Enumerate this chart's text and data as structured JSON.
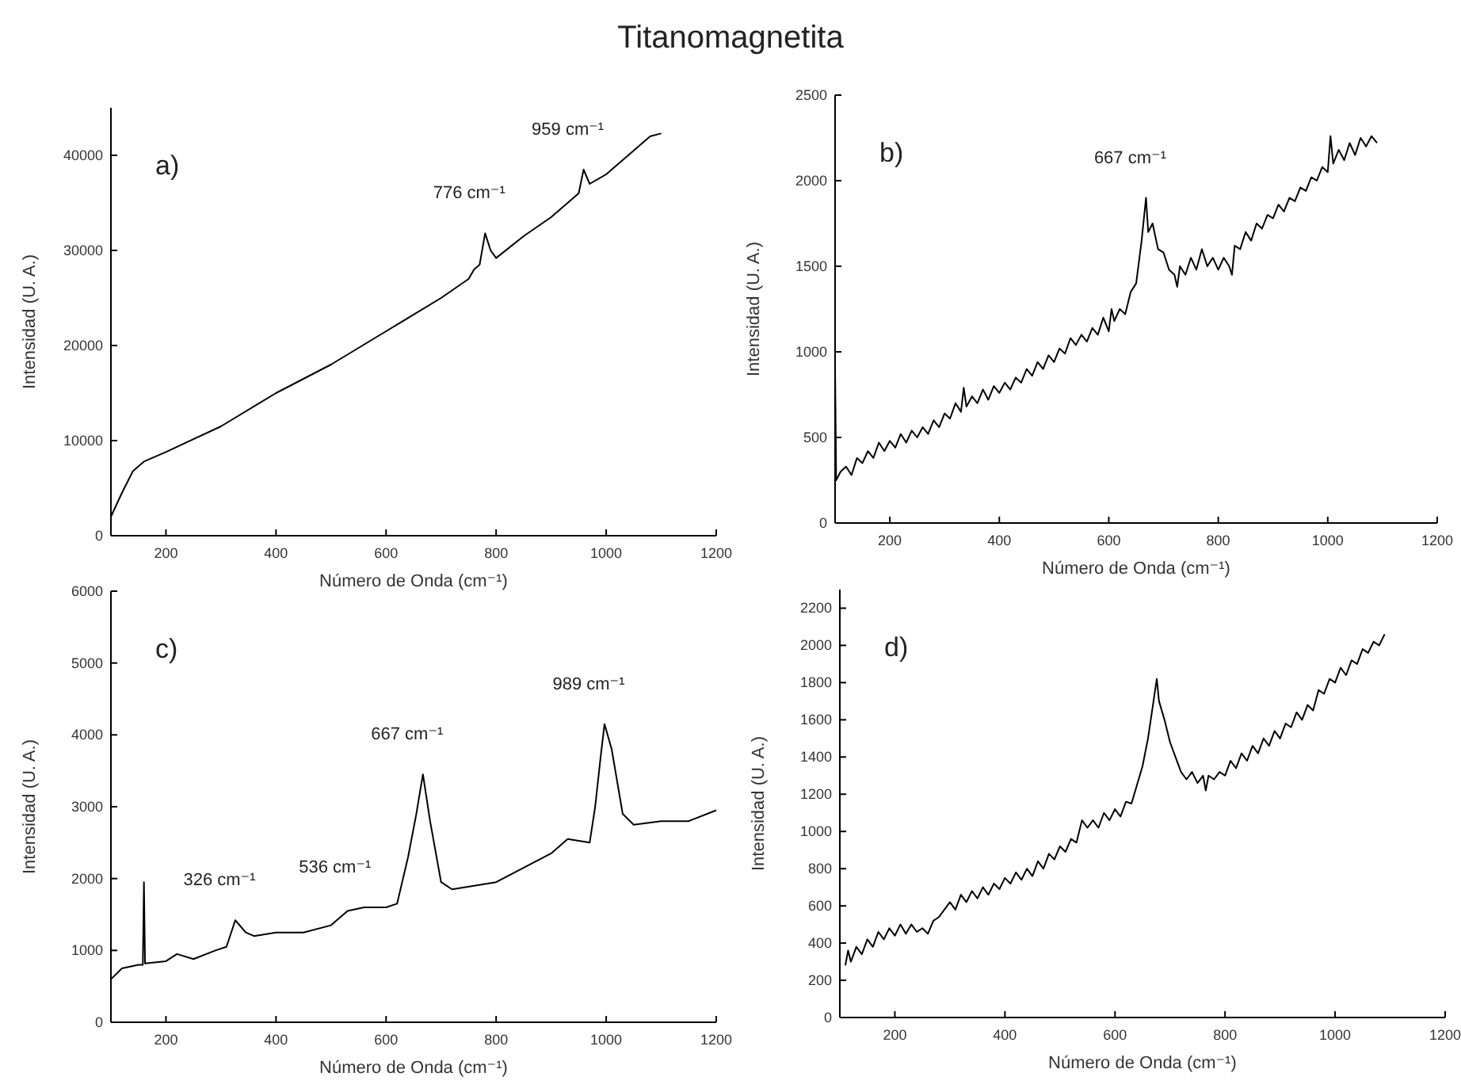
{
  "chart_data": [
    {
      "type": "line",
      "title": "Titanomagnetita",
      "xlabel": "Número de Onda (cm⁻¹)",
      "ylabel": "Intensidad (U. A.)",
      "xlim": [
        100,
        1200
      ],
      "ylim": [
        0,
        45000
      ],
      "xticks": [
        200,
        400,
        600,
        800,
        1000,
        1200
      ],
      "yticks": [
        0,
        10000,
        20000,
        30000,
        40000
      ],
      "color": "#000000",
      "x": [
        100,
        120,
        140,
        160,
        200,
        300,
        400,
        500,
        600,
        700,
        750,
        760,
        770,
        780,
        790,
        800,
        850,
        900,
        940,
        950,
        959,
        970,
        1000,
        1050,
        1080,
        1100
      ],
      "values": [
        2000,
        4500,
        6800,
        7800,
        8800,
        11500,
        15000,
        18000,
        21500,
        25000,
        27000,
        28000,
        28500,
        31800,
        30000,
        29200,
        31500,
        33500,
        35500,
        36000,
        38500,
        37000,
        38000,
        40500,
        42000,
        42300
      ],
      "annotations": [
        "a)",
        {
          "text": "776 cm⁻¹",
          "x": 780,
          "y": 31800
        },
        {
          "text": "959 cm⁻¹",
          "x": 959,
          "y": 38500
        }
      ]
    },
    {
      "type": "line",
      "xlabel": "Número de Onda (cm⁻¹)",
      "ylabel": "Intensidad (U. A.)",
      "xlim": [
        100,
        1200
      ],
      "ylim": [
        0,
        2500
      ],
      "xticks": [
        200,
        400,
        600,
        800,
        1000,
        1200
      ],
      "yticks": [
        0,
        500,
        1000,
        1500,
        2000,
        2500
      ],
      "color": "#000000",
      "x": [
        100,
        102,
        110,
        120,
        130,
        140,
        150,
        160,
        170,
        180,
        190,
        200,
        210,
        220,
        230,
        240,
        250,
        260,
        270,
        280,
        290,
        300,
        310,
        320,
        330,
        335,
        340,
        350,
        360,
        370,
        380,
        390,
        400,
        410,
        420,
        430,
        440,
        450,
        460,
        470,
        480,
        490,
        500,
        510,
        520,
        530,
        540,
        550,
        560,
        570,
        580,
        590,
        600,
        605,
        610,
        620,
        630,
        640,
        650,
        660,
        668,
        672,
        680,
        690,
        700,
        710,
        720,
        725,
        730,
        740,
        750,
        760,
        770,
        780,
        790,
        800,
        810,
        820,
        825,
        830,
        840,
        850,
        860,
        870,
        880,
        890,
        900,
        910,
        920,
        930,
        940,
        950,
        960,
        970,
        980,
        990,
        1000,
        1005,
        1010,
        1020,
        1030,
        1040,
        1050,
        1060,
        1070,
        1080,
        1090
      ],
      "values": [
        900,
        250,
        300,
        330,
        280,
        380,
        350,
        420,
        380,
        470,
        420,
        480,
        440,
        520,
        470,
        540,
        500,
        560,
        520,
        600,
        560,
        640,
        610,
        700,
        650,
        790,
        680,
        740,
        700,
        780,
        720,
        800,
        760,
        820,
        780,
        850,
        820,
        900,
        860,
        940,
        900,
        980,
        940,
        1020,
        990,
        1080,
        1040,
        1100,
        1060,
        1140,
        1100,
        1200,
        1120,
        1250,
        1180,
        1250,
        1220,
        1350,
        1400,
        1650,
        1900,
        1700,
        1750,
        1600,
        1580,
        1480,
        1450,
        1380,
        1500,
        1450,
        1550,
        1480,
        1600,
        1500,
        1550,
        1480,
        1550,
        1500,
        1450,
        1620,
        1600,
        1700,
        1650,
        1750,
        1720,
        1800,
        1780,
        1860,
        1820,
        1900,
        1880,
        1960,
        1940,
        2020,
        2000,
        2080,
        2050,
        2260,
        2100,
        2180,
        2120,
        2220,
        2150,
        2250,
        2200,
        2260,
        2220
      ],
      "annotations": [
        "b)",
        {
          "text": "667 cm⁻¹",
          "x": 668,
          "y": 1900
        }
      ]
    },
    {
      "type": "line",
      "xlabel": "Número de Onda (cm⁻¹)",
      "ylabel": "Intensidad (U. A.)",
      "xlim": [
        100,
        1200
      ],
      "ylim": [
        0,
        6000
      ],
      "xticks": [
        200,
        400,
        600,
        800,
        1000,
        1200
      ],
      "yticks": [
        0,
        1000,
        2000,
        3000,
        4000,
        5000,
        6000
      ],
      "color": "#000000",
      "x": [
        100,
        120,
        150,
        158,
        160,
        162,
        200,
        220,
        250,
        290,
        310,
        326,
        345,
        360,
        400,
        450,
        500,
        530,
        560,
        600,
        620,
        640,
        655,
        667,
        680,
        700,
        720,
        800,
        900,
        930,
        970,
        980,
        990,
        997,
        1010,
        1030,
        1050,
        1100,
        1150,
        1200
      ],
      "values": [
        600,
        750,
        800,
        800,
        1950,
        820,
        850,
        950,
        880,
        1000,
        1050,
        1420,
        1250,
        1200,
        1250,
        1250,
        1350,
        1550,
        1600,
        1600,
        1650,
        2300,
        2900,
        3450,
        2800,
        1950,
        1850,
        1950,
        2350,
        2550,
        2500,
        3000,
        3700,
        4150,
        3800,
        2900,
        2750,
        2800,
        2800,
        2950
      ],
      "annotations": [
        "c)",
        {
          "text": "326 cm⁻¹",
          "x": 326,
          "y": 1420
        },
        {
          "text": "536 cm⁻¹",
          "x": 536,
          "y": 1600
        },
        {
          "text": "667 cm⁻¹",
          "x": 667,
          "y": 3450
        },
        {
          "text": "989 cm⁻¹",
          "x": 997,
          "y": 4150
        }
      ]
    },
    {
      "type": "line",
      "xlabel": "Número de Onda (cm⁻¹)",
      "ylabel": "Intensidad (U. A.)",
      "xlim": [
        100,
        1200
      ],
      "ylim": [
        0,
        2300
      ],
      "xticks": [
        200,
        400,
        600,
        800,
        1000,
        1200
      ],
      "yticks": [
        0,
        200,
        400,
        600,
        800,
        1000,
        1200,
        1400,
        1600,
        1800,
        2000,
        2200
      ],
      "color": "#000000",
      "x": [
        110,
        115,
        120,
        130,
        140,
        150,
        160,
        170,
        180,
        190,
        200,
        210,
        220,
        230,
        240,
        250,
        260,
        270,
        280,
        290,
        300,
        310,
        320,
        330,
        340,
        350,
        360,
        370,
        380,
        390,
        400,
        410,
        420,
        430,
        440,
        450,
        460,
        470,
        480,
        490,
        500,
        510,
        520,
        530,
        540,
        550,
        560,
        570,
        580,
        590,
        600,
        610,
        620,
        630,
        640,
        650,
        660,
        670,
        676,
        680,
        690,
        700,
        710,
        720,
        730,
        740,
        750,
        760,
        765,
        770,
        780,
        790,
        800,
        810,
        820,
        830,
        840,
        850,
        860,
        870,
        880,
        890,
        900,
        910,
        920,
        930,
        940,
        950,
        960,
        970,
        980,
        990,
        1000,
        1010,
        1020,
        1030,
        1040,
        1050,
        1060,
        1070,
        1080,
        1090
      ],
      "values": [
        280,
        360,
        300,
        380,
        340,
        420,
        380,
        460,
        420,
        480,
        440,
        500,
        450,
        500,
        460,
        480,
        450,
        520,
        540,
        580,
        620,
        580,
        660,
        620,
        680,
        640,
        700,
        660,
        720,
        690,
        750,
        720,
        780,
        740,
        800,
        760,
        840,
        800,
        880,
        850,
        920,
        890,
        960,
        940,
        1060,
        1020,
        1060,
        1020,
        1100,
        1060,
        1120,
        1080,
        1160,
        1150,
        1250,
        1350,
        1500,
        1700,
        1820,
        1700,
        1600,
        1480,
        1400,
        1320,
        1280,
        1320,
        1260,
        1300,
        1220,
        1300,
        1280,
        1320,
        1300,
        1380,
        1340,
        1420,
        1380,
        1460,
        1420,
        1500,
        1460,
        1540,
        1500,
        1580,
        1560,
        1640,
        1600,
        1680,
        1650,
        1760,
        1740,
        1820,
        1800,
        1880,
        1840,
        1920,
        1900,
        1980,
        1960,
        2020,
        2000,
        2060
      ],
      "annotations": [
        "d)"
      ]
    }
  ]
}
